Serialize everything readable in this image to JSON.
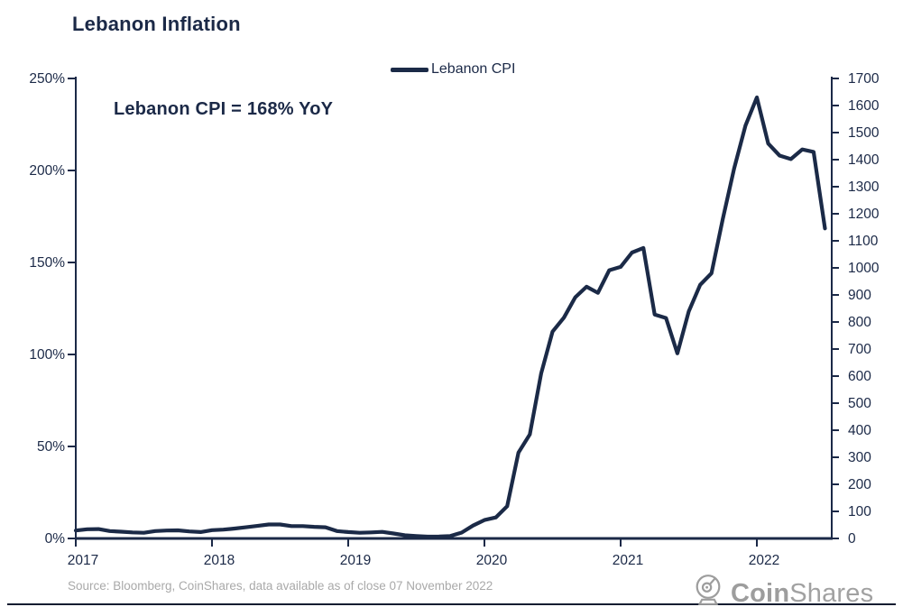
{
  "title": "Lebanon Inflation",
  "legend": {
    "label": "Lebanon CPI"
  },
  "annotation": "Lebanon CPI = 168% YoY",
  "source": "Source: Bloomberg, CoinShares, data available as of close 07 November 2022",
  "logo": {
    "bold": "Coin",
    "light": "Shares",
    "icon": "coinshares-helmet-icon"
  },
  "colors": {
    "line": "#1b2a47",
    "axis": "#1b2947",
    "tick_text": "#1b2947",
    "muted_text": "#a9a9a9",
    "logo_gray": "#9d9d9d",
    "bottom_rule": "#121c30",
    "background": "#ffffff"
  },
  "chart_data": {
    "type": "line",
    "title": "Lebanon Inflation",
    "legend_entries": [
      "Lebanon CPI"
    ],
    "legend_position": "top-center",
    "grid": false,
    "annotation": "Lebanon CPI = 168% YoY",
    "x_tick_labels": [
      "2017",
      "2018",
      "2019",
      "2020",
      "2021",
      "2022"
    ],
    "left_axis": {
      "unit": "% YoY",
      "min": 0,
      "max": 250,
      "tick_values": [
        0,
        50,
        100,
        150,
        200,
        250
      ],
      "tick_labels": [
        "0%",
        "50%",
        "100%",
        "150%",
        "200%",
        "250%"
      ]
    },
    "right_axis": {
      "min": 0,
      "max": 1700,
      "step": 100,
      "tick_labels": [
        "0",
        "100",
        "200",
        "300",
        "400",
        "500",
        "600",
        "700",
        "800",
        "900",
        "1000",
        "1100",
        "1200",
        "1300",
        "1400",
        "1500",
        "1600",
        "1700"
      ]
    },
    "series": [
      {
        "name": "Lebanon CPI",
        "frequency": "monthly",
        "x_start": "2017-01",
        "x_end": "2022-07",
        "values": [
          4.3,
          5.0,
          5.1,
          4.0,
          3.7,
          3.3,
          3.1,
          4.0,
          4.3,
          4.4,
          3.8,
          3.5,
          4.5,
          4.8,
          5.4,
          6.1,
          6.8,
          7.6,
          7.6,
          6.7,
          6.7,
          6.3,
          6.1,
          4.0,
          3.5,
          3.1,
          3.3,
          3.6,
          2.7,
          1.7,
          1.3,
          1.0,
          1.1,
          1.3,
          3.2,
          7.0,
          10.0,
          11.4,
          17.5,
          46.6,
          56.5,
          89.7,
          112.4,
          120.0,
          131.1,
          136.8,
          133.5,
          145.8,
          147.6,
          155.4,
          157.9,
          121.7,
          119.8,
          100.6,
          123.4,
          137.8,
          144.1,
          173.6,
          201.1,
          224.4,
          239.7,
          214.6,
          208.1,
          206.2,
          211.4,
          210.1,
          168.5
        ]
      }
    ]
  }
}
